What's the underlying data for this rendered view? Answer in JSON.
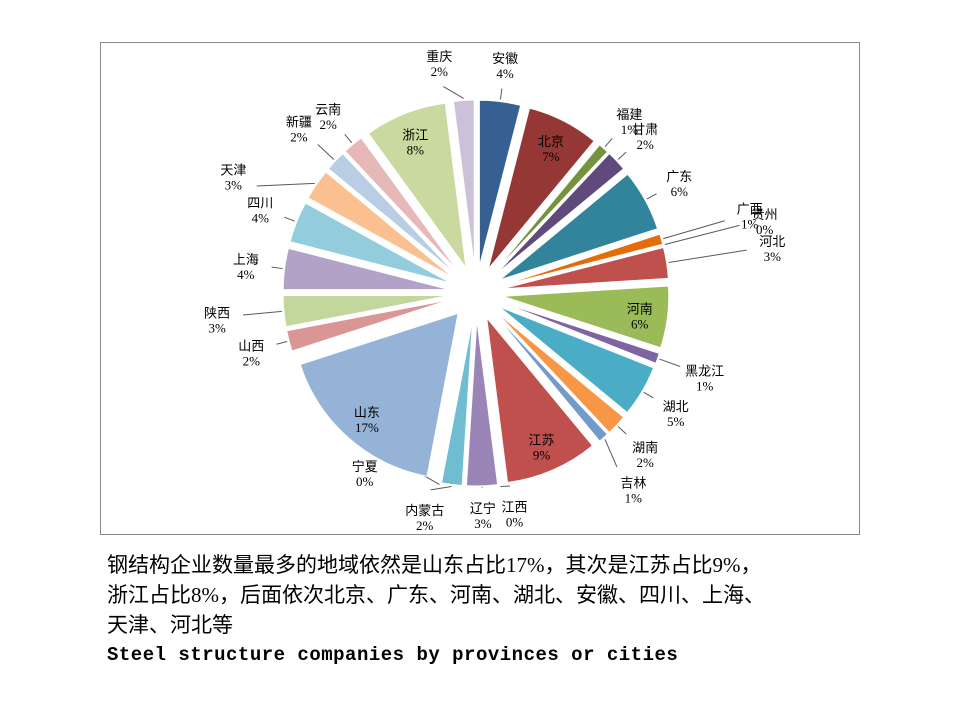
{
  "slide": {
    "caption_lines": [
      "钢结构企业数量最多的地域依然是山东占比17%，其次是江苏占比9%，",
      "浙江占比8%，后面依次北京、广东、河南、湖北、安徽、四川、上海、",
      "天津、河北等"
    ],
    "caption_en": "Steel structure companies by provinces or cities"
  },
  "chart_data": {
    "type": "pie",
    "exploded": true,
    "start_angle_deg": 0,
    "direction": "clockwise",
    "unit": "%",
    "title": "",
    "legend": "none",
    "items": [
      {
        "name": "安徽",
        "value": 4,
        "color": "#366092"
      },
      {
        "name": "北京",
        "value": 7,
        "color": "#953734",
        "inside": true
      },
      {
        "name": "福建",
        "value": 1,
        "color": "#76923C"
      },
      {
        "name": "甘肃",
        "value": 2,
        "color": "#604A7B"
      },
      {
        "name": "广东",
        "value": 6,
        "color": "#31849B"
      },
      {
        "name": "广西",
        "value": 1,
        "color": "#E46C0A",
        "lr": 285
      },
      {
        "name": "贵州",
        "value": 0,
        "color": "#4F81BD",
        "lr": 298
      },
      {
        "name": "河北",
        "value": 3,
        "color": "#C0504D",
        "lr": 300
      },
      {
        "name": "河南",
        "value": 6,
        "color": "#9BBB59",
        "inside": true
      },
      {
        "name": "黑龙江",
        "value": 1,
        "color": "#8064A2",
        "lr": 243
      },
      {
        "name": "湖北",
        "value": 5,
        "color": "#4BACC6"
      },
      {
        "name": "湖南",
        "value": 2,
        "color": "#F79646"
      },
      {
        "name": "吉林",
        "value": 1,
        "color": "#729ACA",
        "la": 141,
        "lr": 250
      },
      {
        "name": "江苏",
        "value": 9,
        "color": "#C0504D",
        "inside": true
      },
      {
        "name": "江西",
        "value": 0,
        "color": "#AFC97A",
        "la": 170,
        "lr": 222
      },
      {
        "name": "辽宁",
        "value": 3,
        "color": "#9A84B8",
        "lr": 220
      },
      {
        "name": "内蒙古",
        "value": 2,
        "color": "#70BDD1",
        "la": 193,
        "lr": 228
      },
      {
        "name": "宁夏",
        "value": 0,
        "color": "#F8A35D",
        "la": 212,
        "lr": 210
      },
      {
        "name": "山东",
        "value": 17,
        "color": "#95B3D7",
        "inside": true
      },
      {
        "name": "山西",
        "value": 2,
        "color": "#D99694"
      },
      {
        "name": "陕西",
        "value": 3,
        "color": "#C3D69B",
        "lr": 260
      },
      {
        "name": "上海",
        "value": 4,
        "color": "#B3A2C7"
      },
      {
        "name": "四川",
        "value": 4,
        "color": "#93CDDD"
      },
      {
        "name": "天津",
        "value": 3,
        "color": "#FAC090",
        "la": 296,
        "lr": 270
      },
      {
        "name": "新疆",
        "value": 2,
        "color": "#B9CDE5",
        "lr": 243
      },
      {
        "name": "云南",
        "value": 2,
        "color": "#E6B9B8"
      },
      {
        "name": "浙江",
        "value": 8,
        "color": "#C9D9A0",
        "inside": true
      },
      {
        "name": "重庆",
        "value": 2,
        "color": "#CCC1D9",
        "la": 351,
        "lr": 235
      }
    ]
  }
}
